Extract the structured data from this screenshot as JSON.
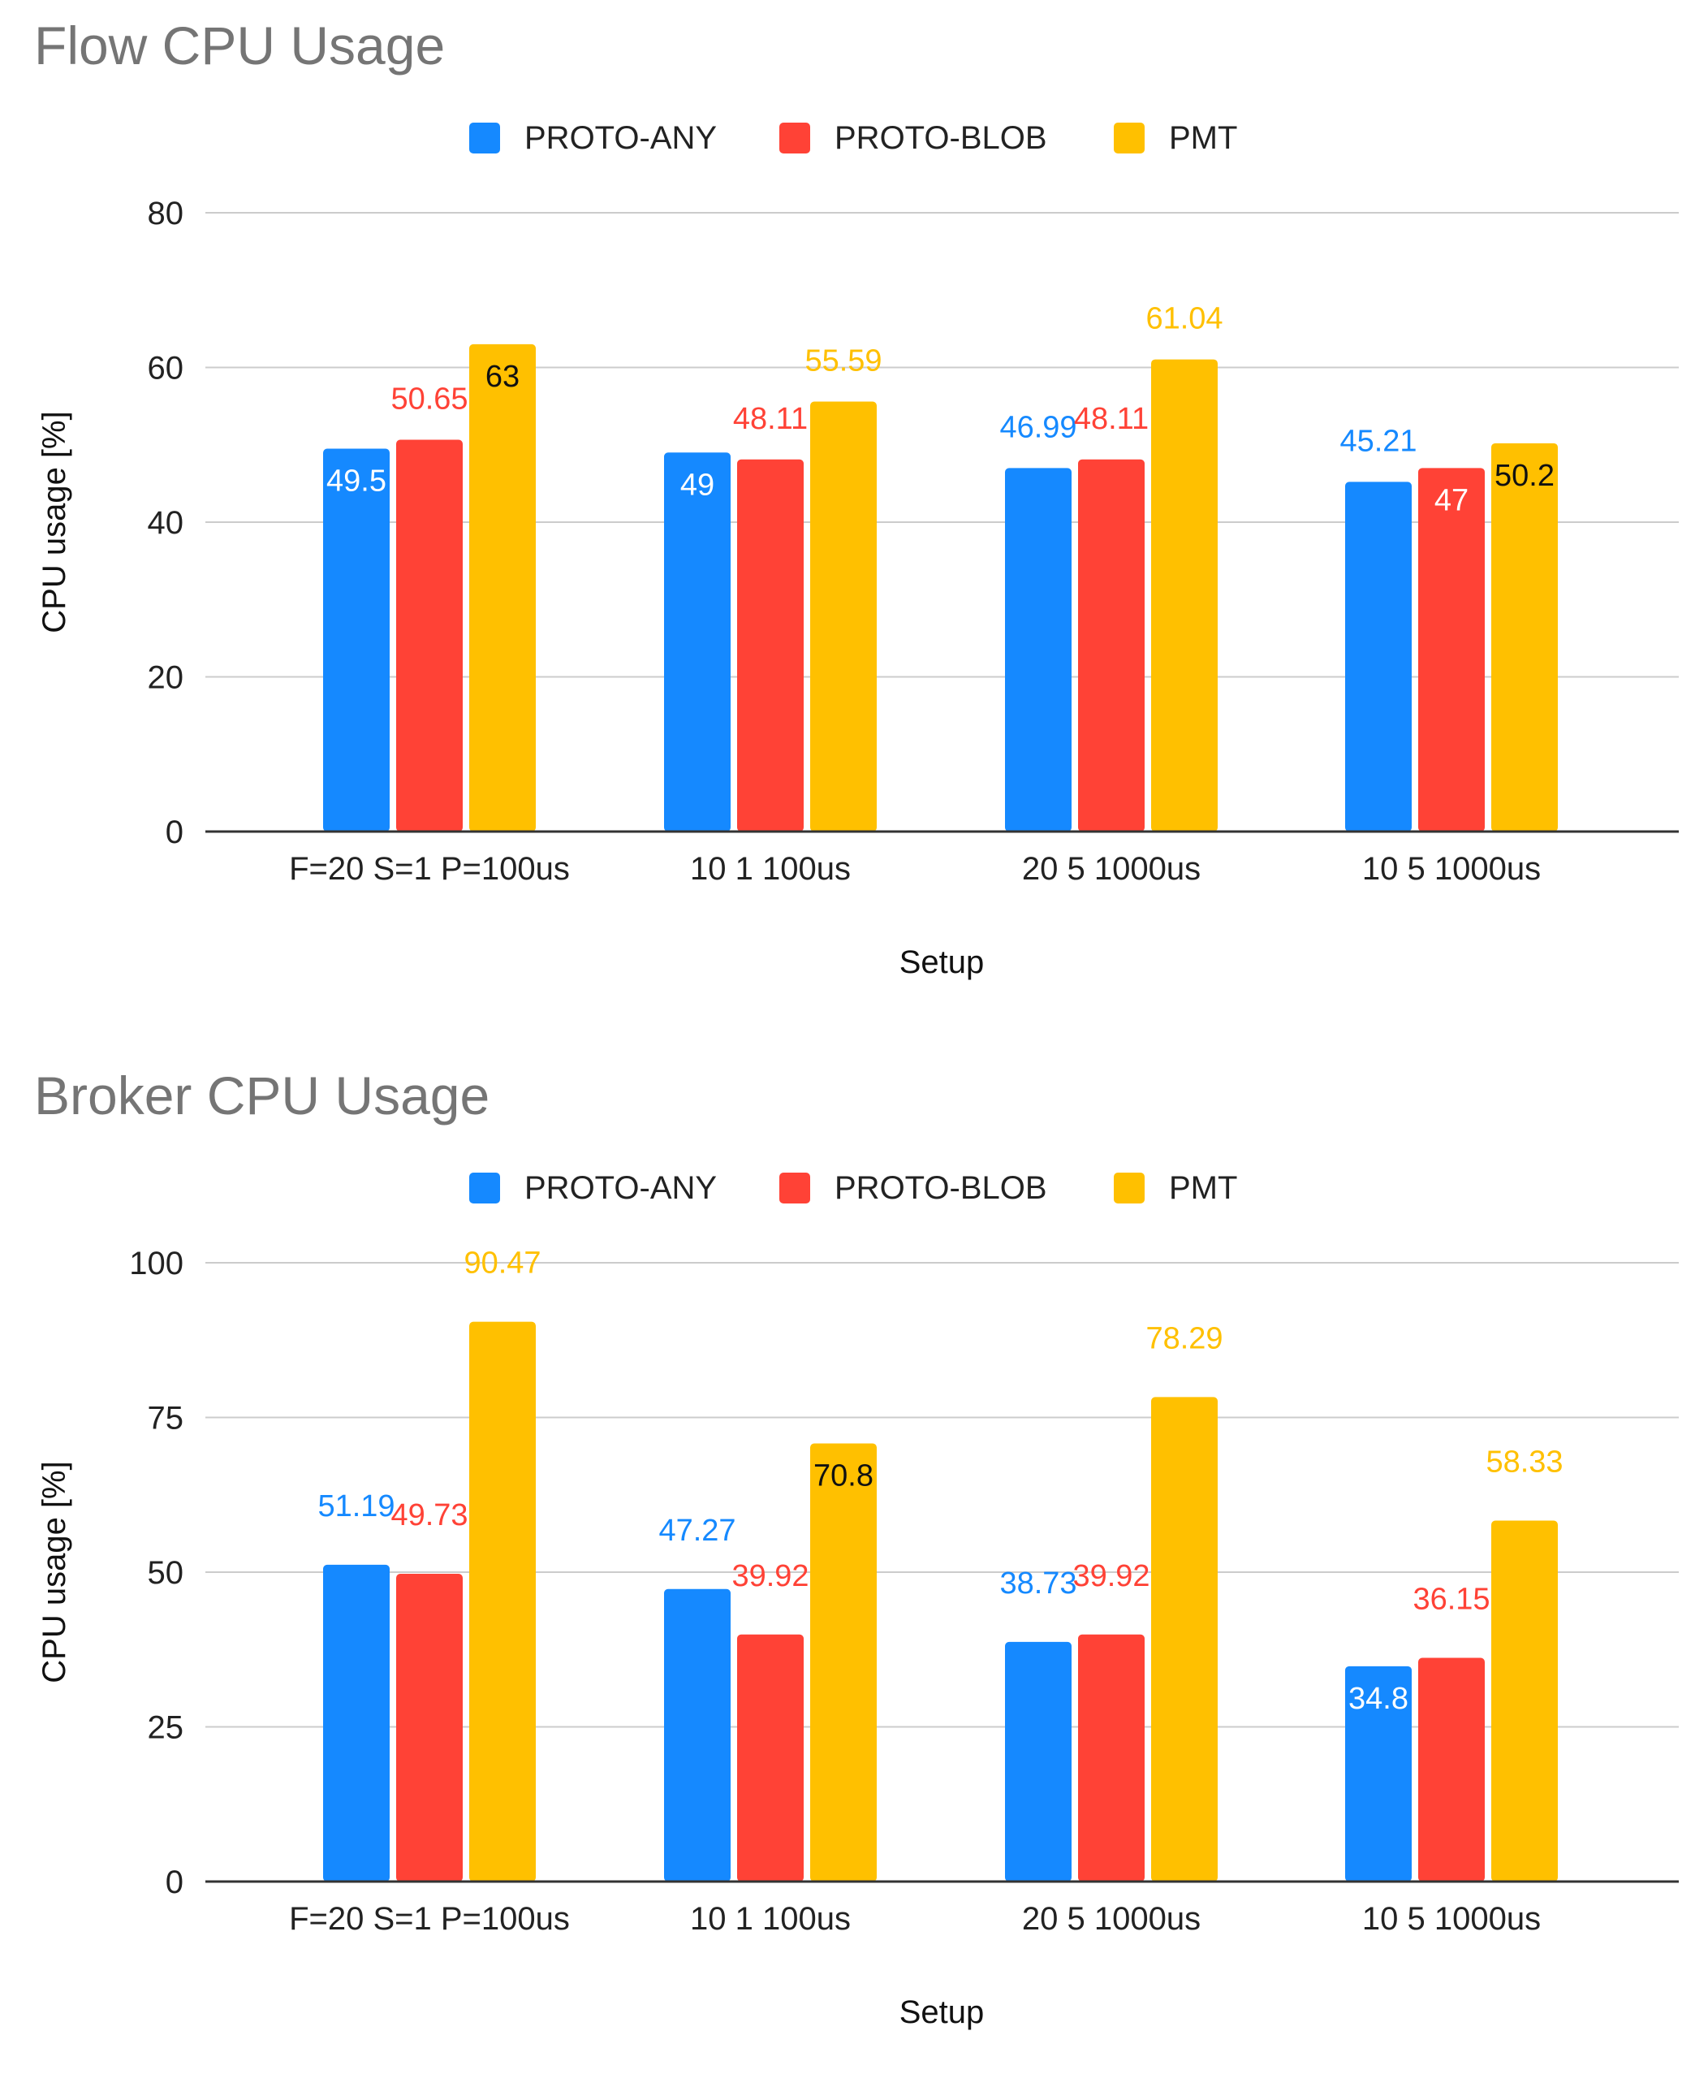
{
  "colors": {
    "series": [
      "#1589ff",
      "#ff4236",
      "#ffc000"
    ],
    "grid": "#cccccc",
    "axis": "#333333",
    "title": "#757575"
  },
  "chart_data": [
    {
      "type": "bar",
      "title": "Flow CPU Usage",
      "xlabel": "Setup",
      "ylabel": "CPU usage [%]",
      "ylim": [
        0,
        80
      ],
      "yticks": [
        "0",
        "20",
        "40",
        "60",
        "80"
      ],
      "yticks_values": [
        0,
        20,
        40,
        60,
        80
      ],
      "grid": true,
      "legend": "top",
      "categories": [
        "F=20 S=1 P=100us",
        "10 1 100us",
        "20 5 1000us",
        "10 5 1000us"
      ],
      "series": [
        {
          "name": "PROTO-ANY",
          "values": [
            49.5,
            49,
            46.99,
            45.21
          ]
        },
        {
          "name": "PROTO-BLOB",
          "values": [
            50.65,
            48.11,
            48.11,
            47
          ]
        },
        {
          "name": "PMT",
          "values": [
            63,
            55.59,
            61.04,
            50.2
          ]
        }
      ]
    },
    {
      "type": "bar",
      "title": "Broker CPU Usage",
      "xlabel": "Setup",
      "ylabel": "CPU usage [%]",
      "ylim": [
        0,
        100
      ],
      "yticks": [
        "0",
        "25",
        "50",
        "75",
        "100"
      ],
      "yticks_values": [
        0,
        25,
        50,
        75,
        100
      ],
      "grid": true,
      "legend": "top",
      "categories": [
        "F=20 S=1 P=100us",
        "10 1 100us",
        "20 5 1000us",
        "10 5 1000us"
      ],
      "series": [
        {
          "name": "PROTO-ANY",
          "values": [
            51.19,
            47.27,
            38.73,
            34.8
          ]
        },
        {
          "name": "PROTO-BLOB",
          "values": [
            49.73,
            39.92,
            39.92,
            36.15
          ]
        },
        {
          "name": "PMT",
          "values": [
            90.47,
            70.8,
            78.29,
            58.33
          ]
        }
      ]
    }
  ]
}
